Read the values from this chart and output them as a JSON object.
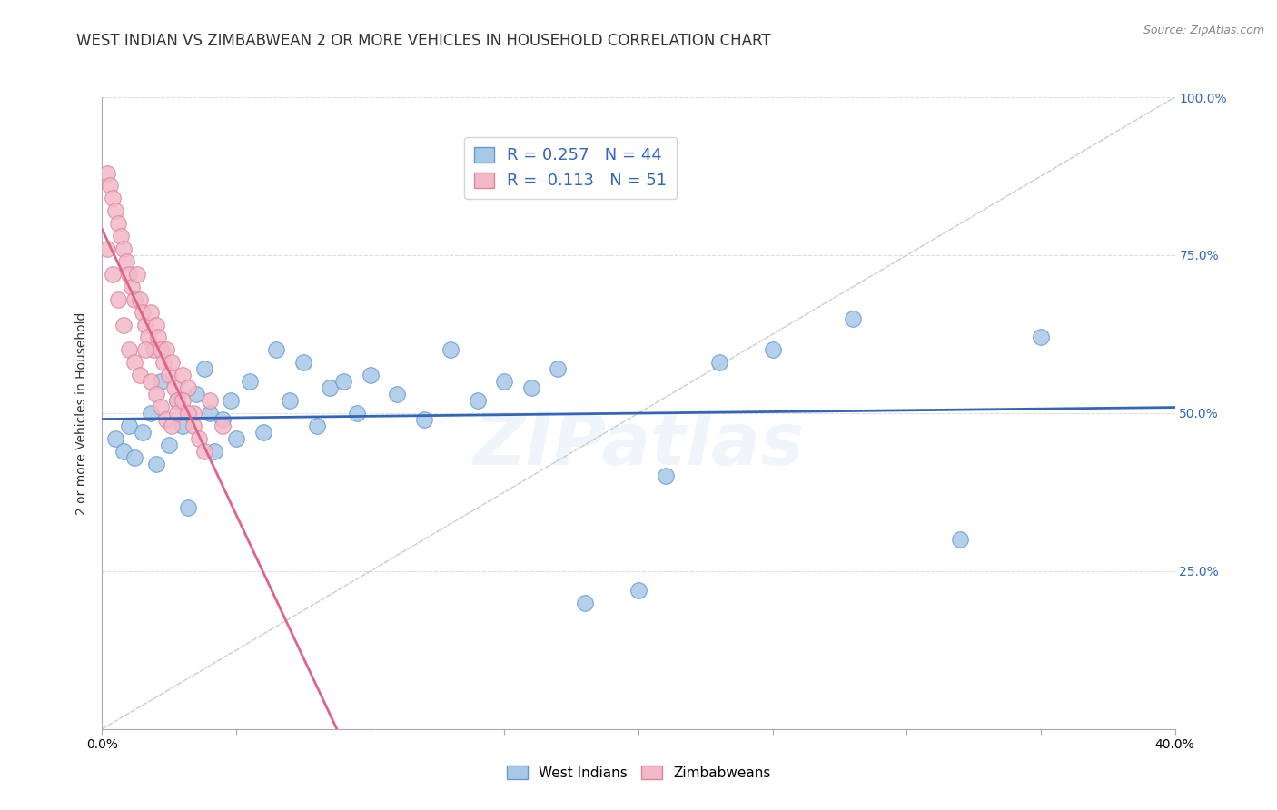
{
  "title": "WEST INDIAN VS ZIMBABWEAN 2 OR MORE VEHICLES IN HOUSEHOLD CORRELATION CHART",
  "source": "Source: ZipAtlas.com",
  "xlabel_west": "West Indians",
  "xlabel_zimb": "Zimbabweans",
  "ylabel": "2 or more Vehicles in Household",
  "xlim": [
    0.0,
    0.4
  ],
  "ylim": [
    0.0,
    1.0
  ],
  "blue_color": "#a8c8e8",
  "blue_edge_color": "#6699cc",
  "pink_color": "#f4b8c8",
  "pink_edge_color": "#d488a0",
  "blue_line_color": "#3366bb",
  "pink_line_color": "#dd6688",
  "diagonal_color": "#cccccc",
  "R_west": 0.257,
  "N_west": 44,
  "R_zimb": 0.113,
  "N_zimb": 51,
  "west_x": [
    0.005,
    0.008,
    0.01,
    0.012,
    0.015,
    0.018,
    0.02,
    0.022,
    0.025,
    0.028,
    0.03,
    0.032,
    0.035,
    0.038,
    0.04,
    0.042,
    0.045,
    0.048,
    0.05,
    0.055,
    0.06,
    0.065,
    0.07,
    0.075,
    0.08,
    0.085,
    0.09,
    0.095,
    0.1,
    0.11,
    0.12,
    0.13,
    0.14,
    0.15,
    0.16,
    0.17,
    0.18,
    0.2,
    0.21,
    0.23,
    0.25,
    0.28,
    0.32,
    0.35
  ],
  "west_y": [
    0.46,
    0.44,
    0.48,
    0.43,
    0.47,
    0.5,
    0.42,
    0.55,
    0.45,
    0.52,
    0.48,
    0.35,
    0.53,
    0.57,
    0.5,
    0.44,
    0.49,
    0.52,
    0.46,
    0.55,
    0.47,
    0.6,
    0.52,
    0.58,
    0.48,
    0.54,
    0.55,
    0.5,
    0.56,
    0.53,
    0.49,
    0.6,
    0.52,
    0.55,
    0.54,
    0.57,
    0.2,
    0.22,
    0.4,
    0.58,
    0.6,
    0.65,
    0.3,
    0.62
  ],
  "zimb_x": [
    0.002,
    0.003,
    0.004,
    0.005,
    0.006,
    0.007,
    0.008,
    0.009,
    0.01,
    0.011,
    0.012,
    0.013,
    0.014,
    0.015,
    0.016,
    0.017,
    0.018,
    0.019,
    0.02,
    0.021,
    0.022,
    0.023,
    0.024,
    0.025,
    0.026,
    0.027,
    0.028,
    0.03,
    0.032,
    0.034,
    0.002,
    0.004,
    0.006,
    0.008,
    0.01,
    0.012,
    0.014,
    0.016,
    0.018,
    0.02,
    0.022,
    0.024,
    0.026,
    0.028,
    0.03,
    0.032,
    0.034,
    0.036,
    0.038,
    0.04,
    0.045
  ],
  "zimb_y": [
    0.88,
    0.86,
    0.84,
    0.82,
    0.8,
    0.78,
    0.76,
    0.74,
    0.72,
    0.7,
    0.68,
    0.72,
    0.68,
    0.66,
    0.64,
    0.62,
    0.66,
    0.6,
    0.64,
    0.62,
    0.6,
    0.58,
    0.6,
    0.56,
    0.58,
    0.54,
    0.52,
    0.56,
    0.54,
    0.5,
    0.76,
    0.72,
    0.68,
    0.64,
    0.6,
    0.58,
    0.56,
    0.6,
    0.55,
    0.53,
    0.51,
    0.49,
    0.48,
    0.5,
    0.52,
    0.5,
    0.48,
    0.46,
    0.44,
    0.52,
    0.48
  ],
  "watermark": "ZIPatlas",
  "background_color": "#ffffff",
  "title_fontsize": 12,
  "axis_fontsize": 10,
  "legend_fontsize": 13,
  "yaxis_label_color": "#3366bb"
}
